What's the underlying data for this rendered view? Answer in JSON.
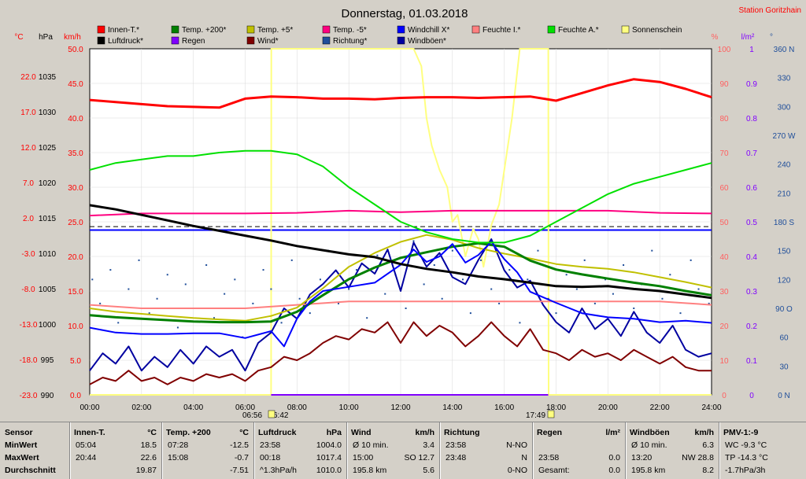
{
  "header": {
    "title": "Donnerstag, 01.03.2018",
    "station": "Station Goritzhain"
  },
  "colors": {
    "background": "#d4d0c8",
    "plot": "#ffffff",
    "innen_t": "#ff0000",
    "temp_200": "#008000",
    "temp_5": "#c0c000",
    "temp_m5": "#ff0080",
    "windchill": "#0000ff",
    "feuchte_i": "#ff8080",
    "feuchte_a": "#00e000",
    "sonnenschein": "#ffff80",
    "luftdruck": "#000000",
    "regen": "#8000ff",
    "wind": "#800000",
    "richtung": "#1f4e9a",
    "windboeen": "#0000a0"
  },
  "chart_data": {
    "type": "line",
    "x_ticks": [
      "00:00",
      "02:00",
      "04:00",
      "06:00",
      "08:00",
      "10:00",
      "12:00",
      "14:00",
      "16:00",
      "18:00",
      "20:00",
      "22:00",
      "24:00"
    ],
    "x_range_hours": [
      0,
      24
    ],
    "axes": {
      "celsius": {
        "label": "°C",
        "ticks": [
          "22.0",
          "17.0",
          "12.0",
          "7.0",
          "2.0",
          "-3.0",
          "-8.0",
          "-13.0",
          "-18.0",
          "-23.0"
        ],
        "range": [
          -23,
          27
        ]
      },
      "hpa": {
        "label": "hPa",
        "ticks": [
          "1035",
          "1030",
          "1025",
          "1020",
          "1015",
          "1010",
          "1005",
          "1000",
          "995",
          "990"
        ],
        "range": [
          990,
          1040
        ]
      },
      "kmh": {
        "label": "km/h",
        "ticks": [
          "50.0",
          "45.0",
          "40.0",
          "35.0",
          "30.0",
          "25.0",
          "20.0",
          "15.0",
          "10.0",
          "5.0",
          "0.0"
        ],
        "range": [
          0,
          50
        ]
      },
      "percent": {
        "label": "%",
        "ticks": [
          "100",
          "90",
          "80",
          "70",
          "60",
          "50",
          "40",
          "30",
          "20",
          "10",
          "0"
        ],
        "range": [
          0,
          100
        ]
      },
      "rain": {
        "label": "l/m²",
        "ticks": [
          "1",
          "0.9",
          "0.8",
          "0.7",
          "0.6",
          "0.5",
          "0.4",
          "0.3",
          "0.2",
          "0.1",
          "0"
        ],
        "range": [
          0,
          1
        ]
      },
      "degrees": {
        "label": "°",
        "ticks": [
          "360 N",
          "330",
          "300",
          "270 W",
          "240",
          "210",
          "180 S",
          "150",
          "120",
          "90 O",
          "60",
          "30",
          "0 N"
        ],
        "range": [
          0,
          360
        ]
      }
    },
    "legend": [
      {
        "name": "Innen-T.*",
        "color": "#ff0000"
      },
      {
        "name": "Temp. +200*",
        "color": "#008000"
      },
      {
        "name": "Temp. +5*",
        "color": "#c0c000"
      },
      {
        "name": "Temp. -5*",
        "color": "#ff0080"
      },
      {
        "name": "Windchill X*",
        "color": "#0000ff"
      },
      {
        "name": "Feuchte I.*",
        "color": "#ff8080"
      },
      {
        "name": "Feuchte A.*",
        "color": "#00e000"
      },
      {
        "name": "Sonnenschein",
        "color": "#ffff80"
      },
      {
        "name": "Luftdruck*",
        "color": "#000000"
      },
      {
        "name": "Regen",
        "color": "#8000ff"
      },
      {
        "name": "Wind*",
        "color": "#800000"
      },
      {
        "name": "Richtung*",
        "color": "#1f4e9a"
      },
      {
        "name": "Windböen*",
        "color": "#0000a0"
      }
    ],
    "series": [
      {
        "key": "innen",
        "axis": "celsius",
        "color": "#ff0000",
        "width": 3,
        "x": [
          0,
          1,
          2,
          3,
          4,
          5,
          6,
          7,
          8,
          9,
          10,
          11,
          12,
          13,
          14,
          15,
          16,
          17,
          18,
          19,
          20,
          21,
          22,
          23,
          24
        ],
        "y": [
          19.6,
          19.3,
          19.0,
          18.7,
          18.6,
          18.5,
          19.8,
          20.1,
          20.0,
          19.8,
          19.8,
          19.7,
          19.9,
          20.0,
          20.0,
          19.9,
          20.0,
          20.1,
          19.5,
          20.6,
          21.7,
          22.6,
          22.2,
          21.2,
          20.0
        ]
      },
      {
        "key": "feuchte_a",
        "axis": "percent",
        "color": "#00e000",
        "width": 2,
        "x": [
          0,
          1,
          2,
          3,
          4,
          5,
          6,
          7,
          8,
          9,
          10,
          11,
          12,
          13,
          14,
          15,
          16,
          17,
          18,
          19,
          20,
          21,
          22,
          23,
          24
        ],
        "y": [
          65,
          67,
          68,
          69,
          69,
          70,
          70.5,
          70.5,
          69.5,
          66,
          60,
          55,
          50,
          47,
          45,
          44,
          44,
          46,
          50,
          54,
          58,
          61,
          63,
          65,
          67
        ]
      },
      {
        "key": "luftdruck",
        "axis": "hpa",
        "color": "#000000",
        "width": 3,
        "x": [
          0,
          1,
          2,
          3,
          4,
          5,
          6,
          7,
          8,
          9,
          10,
          11,
          12,
          13,
          14,
          15,
          16,
          17,
          18,
          19,
          20,
          21,
          22,
          23,
          24
        ],
        "y": [
          1017.4,
          1016.8,
          1016.0,
          1015.2,
          1014.4,
          1013.7,
          1013.0,
          1012.3,
          1011.5,
          1010.9,
          1010.3,
          1009.9,
          1008.9,
          1008.2,
          1007.7,
          1007.1,
          1006.7,
          1006.2,
          1005.7,
          1005.6,
          1005.7,
          1005.3,
          1005.0,
          1004.5,
          1004.0
        ]
      },
      {
        "key": "temp_m5",
        "axis": "celsius",
        "color": "#ff0080",
        "width": 2,
        "x": [
          0,
          2,
          4,
          6,
          8,
          10,
          12,
          14,
          16,
          18,
          20,
          22,
          24
        ],
        "y": [
          2.9,
          3.2,
          3.2,
          3.2,
          3.3,
          3.6,
          3.4,
          3.6,
          3.6,
          3.6,
          3.6,
          3.3,
          3.2
        ]
      },
      {
        "key": "feuchte_i",
        "axis": "percent",
        "color": "#ff8080",
        "width": 2,
        "x": [
          0,
          2,
          4,
          6,
          8,
          10,
          12,
          14,
          16,
          18,
          20,
          22,
          24
        ],
        "y": [
          26,
          25,
          25,
          25,
          26,
          27,
          27,
          27,
          27,
          27,
          27,
          27,
          26
        ]
      },
      {
        "key": "temp_5",
        "axis": "celsius",
        "color": "#c0c000",
        "width": 2,
        "x": [
          0,
          1,
          2,
          3,
          4,
          5,
          6,
          7,
          8,
          9,
          10,
          11,
          12,
          13,
          14,
          15,
          16,
          17,
          18,
          19,
          20,
          21,
          22,
          23,
          24
        ],
        "y": [
          -10.5,
          -11.0,
          -11.3,
          -11.6,
          -11.9,
          -12.1,
          -12.3,
          -11.6,
          -10.4,
          -7.6,
          -4.5,
          -2.5,
          -0.9,
          0.1,
          -0.6,
          -1.8,
          -2.6,
          -3.3,
          -4.1,
          -4.5,
          -4.8,
          -5.3,
          -6.0,
          -6.7,
          -7.5
        ]
      },
      {
        "key": "temp_200",
        "axis": "celsius",
        "color": "#008000",
        "width": 3,
        "x": [
          0,
          1,
          2,
          3,
          4,
          5,
          6,
          7,
          8,
          9,
          10,
          11,
          12,
          13,
          14,
          15,
          16,
          17,
          18,
          19,
          20,
          21,
          22,
          23,
          24
        ],
        "y": [
          -11.5,
          -11.8,
          -12.0,
          -12.2,
          -12.4,
          -12.5,
          -12.5,
          -12.4,
          -11.0,
          -8.6,
          -6.3,
          -4.6,
          -3.2,
          -2.4,
          -1.6,
          -1.1,
          -1.6,
          -3.6,
          -4.9,
          -5.6,
          -6.2,
          -6.8,
          -7.3,
          -8.0,
          -8.6
        ]
      },
      {
        "key": "windchill",
        "axis": "celsius",
        "color": "#0000ff",
        "width": 2,
        "x": [
          0,
          1,
          2,
          3,
          4,
          5,
          6,
          7,
          7.5,
          8,
          8.5,
          9,
          10,
          11,
          12,
          12.5,
          13,
          13.5,
          14,
          14.5,
          15,
          15.5,
          16,
          16.5,
          17,
          18,
          19,
          20,
          21,
          22,
          23,
          24
        ],
        "y": [
          -13.3,
          -14.0,
          -14.2,
          -14.2,
          -14.1,
          -14.1,
          -14.8,
          -13.8,
          -16.0,
          -12.0,
          -9.5,
          -8.0,
          -7.4,
          -6.8,
          -4.2,
          -2.0,
          -3.8,
          -3.0,
          -1.2,
          -3.9,
          -2.8,
          -0.9,
          -3.4,
          -5.3,
          -8.1,
          -9.7,
          -11.2,
          -11.8,
          -12.0,
          -12.5,
          -12.3,
          -12.6
        ]
      },
      {
        "key": "wind",
        "axis": "kmh",
        "color": "#800000",
        "width": 2,
        "x": [
          0,
          0.5,
          1,
          1.5,
          2,
          2.5,
          3,
          3.5,
          4,
          4.5,
          5,
          5.5,
          6,
          6.5,
          7,
          7.5,
          8,
          8.5,
          9,
          9.5,
          10,
          10.5,
          11,
          11.5,
          12,
          12.5,
          13,
          13.5,
          14,
          14.5,
          15,
          15.5,
          16,
          16.5,
          17,
          17.5,
          18,
          18.5,
          19,
          19.5,
          20,
          20.5,
          21,
          21.5,
          22,
          22.5,
          23,
          23.5,
          24
        ],
        "y": [
          1.5,
          2.5,
          2.0,
          3.5,
          2.0,
          2.5,
          1.5,
          2.5,
          2.0,
          3.0,
          2.5,
          3.0,
          2.0,
          3.5,
          4.0,
          5.5,
          5.0,
          6.0,
          7.5,
          8.5,
          8.0,
          9.5,
          9.0,
          10.5,
          7.5,
          10.5,
          8.5,
          10.0,
          9.0,
          7.0,
          8.5,
          10.5,
          8.5,
          7.0,
          9.5,
          6.5,
          6.0,
          5.0,
          6.5,
          5.5,
          6.0,
          5.0,
          6.5,
          5.5,
          4.5,
          5.5,
          4.0,
          3.5,
          3.5
        ]
      },
      {
        "key": "windboeen",
        "axis": "kmh",
        "color": "#0000a0",
        "width": 2,
        "x": [
          0,
          0.5,
          1,
          1.5,
          2,
          2.5,
          3,
          3.5,
          4,
          4.5,
          5,
          5.5,
          6,
          6.5,
          7,
          7.5,
          8,
          8.5,
          9,
          9.5,
          10,
          10.5,
          11,
          11.5,
          12,
          12.5,
          13,
          13.5,
          14,
          14.5,
          15,
          15.5,
          16,
          16.5,
          17,
          17.5,
          18,
          18.5,
          19,
          19.5,
          20,
          20.5,
          21,
          21.5,
          22,
          22.5,
          23,
          23.5,
          24
        ],
        "y": [
          3.5,
          6.0,
          4.5,
          7.0,
          3.5,
          5.5,
          4.0,
          6.5,
          4.5,
          7.0,
          5.5,
          6.5,
          3.5,
          7.5,
          9.0,
          12.5,
          11.0,
          14.5,
          16.0,
          18.0,
          15.5,
          19.0,
          17.5,
          21.0,
          15.0,
          22.0,
          18.5,
          20.5,
          17.0,
          16.0,
          19.5,
          22.5,
          18.0,
          15.5,
          16.5,
          13.0,
          10.5,
          9.0,
          12.5,
          9.5,
          11.0,
          8.5,
          12.0,
          9.0,
          7.5,
          10.0,
          6.5,
          5.5,
          6.0
        ]
      },
      {
        "key": "sonnenschein",
        "axis": "percent",
        "color": "#ffff80",
        "width": 2,
        "x": [
          0,
          7.0,
          7.01,
          12.3,
          12.5,
          12.8,
          13.0,
          13.2,
          13.5,
          13.8,
          14.0,
          14.2,
          14.5,
          14.8,
          15.0,
          15.2,
          15.5,
          15.8,
          16.0,
          16.3,
          16.6,
          16.9,
          17.1,
          17.7,
          17.71,
          24
        ],
        "y": [
          0,
          0,
          100,
          100,
          100,
          95,
          80,
          72,
          65,
          60,
          50,
          52,
          40,
          48,
          45,
          37,
          49,
          55,
          65,
          80,
          100,
          100,
          100,
          100,
          0,
          0
        ]
      },
      {
        "key": "richtung",
        "axis": "degrees",
        "color": "#1f4e9a",
        "points": true,
        "x": [
          0.1,
          0.4,
          0.8,
          1.1,
          1.5,
          1.9,
          2.3,
          2.6,
          3.0,
          3.4,
          3.7,
          4.1,
          4.5,
          4.8,
          5.2,
          5.6,
          5.9,
          6.3,
          6.7,
          7.0,
          7.4,
          7.8,
          8.1,
          8.5,
          8.9,
          9.2,
          9.6,
          10.0,
          10.3,
          10.7,
          11.1,
          11.4,
          11.8,
          12.2,
          12.5,
          12.9,
          13.3,
          13.6,
          14.0,
          14.4,
          14.7,
          15.1,
          15.5,
          15.8,
          16.2,
          16.6,
          16.9,
          17.3,
          17.7,
          18.0,
          18.4,
          18.8,
          19.1,
          19.5,
          19.9,
          20.2,
          20.6,
          21.0,
          21.3,
          21.7,
          22.1,
          22.4,
          22.8,
          23.2,
          23.5,
          23.9
        ],
        "y": [
          120,
          95,
          130,
          75,
          110,
          140,
          85,
          100,
          125,
          70,
          115,
          90,
          135,
          80,
          105,
          120,
          60,
          95,
          130,
          110,
          75,
          140,
          100,
          85,
          120,
          150,
          95,
          110,
          130,
          80,
          145,
          105,
          125,
          90,
          160,
          115,
          135,
          100,
          150,
          120,
          85,
          140,
          110,
          95,
          130,
          75,
          120,
          150,
          100,
          85,
          125,
          110,
          140,
          95,
          120,
          105,
          135,
          90,
          115,
          150,
          100,
          125,
          85,
          140,
          110,
          95
        ]
      },
      {
        "key": "regen",
        "axis": "rain",
        "color": "#8000ff",
        "width": 2,
        "x": [
          7.0,
          17.7
        ],
        "y": [
          0,
          0
        ]
      }
    ],
    "reference_lines": [
      {
        "axis": "celsius",
        "value": 0.8,
        "color": "#0000ff",
        "width": 2,
        "dash": false
      },
      {
        "axis": "celsius",
        "value": 1.3,
        "color": "#000000",
        "width": 1,
        "dash": true
      }
    ],
    "markers": {
      "sunrise": "06:56",
      "sunrise2": "6:42",
      "sunset": "17:49"
    }
  },
  "stats": {
    "row_labels": [
      "Sensor",
      "MinWert",
      "MaxWert",
      "Durchschnitt"
    ],
    "columns": [
      {
        "header": "Innen-T.",
        "unit": "°C",
        "min_time": "05:04",
        "min_val": "18.5",
        "max_time": "20:44",
        "max_val": "22.6",
        "avg": "19.87"
      },
      {
        "header": "Temp. +200",
        "unit": "°C",
        "min_time": "07:28",
        "min_val": "-12.5",
        "max_time": "15:08",
        "max_val": "-0.7",
        "avg": "-7.51"
      },
      {
        "header": "Luftdruck",
        "unit": "hPa",
        "min_time": "23:58",
        "min_val": "1004.0",
        "max_time": "00:18",
        "max_val": "1017.4",
        "avg_label": "^1.3hPa/h",
        "avg": "1010.0"
      },
      {
        "header": "Wind",
        "unit": "km/h",
        "min_time": "Ø 10 min.",
        "min_val": "3.4",
        "max_time": "15:00",
        "max_val": "SO 12.7",
        "avg_label": "195.8 km",
        "avg": "5.6"
      },
      {
        "header": "Richtung",
        "unit": "",
        "min_time": "23:58",
        "min_val": "N-NO",
        "max_time": "23:48",
        "max_val": "N",
        "avg": "0-NO"
      },
      {
        "header": "Regen",
        "unit": "l/m²",
        "min_time": "",
        "min_val": "",
        "max_time": "23:58",
        "max_val": "0.0",
        "avg_label": "Gesamt:",
        "avg": "0.0"
      },
      {
        "header": "Windböen",
        "unit": "km/h",
        "min_time": "Ø 10 min.",
        "min_val": "6.3",
        "max_time": "13:20",
        "max_val": "NW 28.8",
        "avg_label": "195.8 km",
        "avg": "8.2"
      },
      {
        "header": "PMV-1:-9",
        "unit": "",
        "min_time": "WC -9.3 °C",
        "min_val": "",
        "max_time": "TP -14.3 °C",
        "max_val": "",
        "avg_label": "-1.7hPa/3h",
        "avg": ""
      }
    ]
  }
}
